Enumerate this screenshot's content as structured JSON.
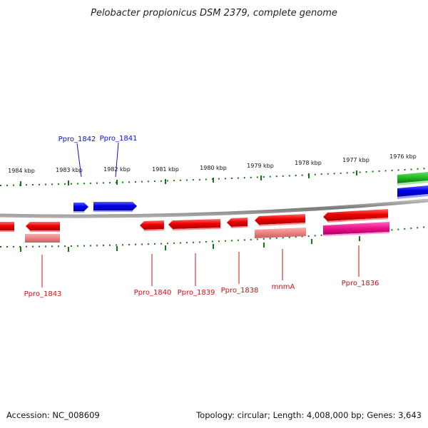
{
  "title": "Pelobacter propionicus DSM 2379, complete genome",
  "footer": {
    "accession": "Accession: NC_008609",
    "summary": "Topology: circular; Length: 4,008,000 bp; Genes: 3,643"
  },
  "scale_labels": [
    "1984 kbp",
    "1983 kbp",
    "1982 kbp",
    "1981 kbp",
    "1980 kbp",
    "1979 kbp",
    "1978 kbp",
    "1977 kbp",
    "1976 kbp"
  ],
  "gene_labels_forward": [
    "Ppro_1842",
    "Ppro_1841"
  ],
  "gene_labels_reverse": [
    "Ppro_1843",
    "Ppro_1840",
    "Ppro_1839",
    "Ppro_1838",
    "mnmA",
    "Ppro_1836"
  ],
  "colors": {
    "forward_gene": "#0000ee",
    "reverse_gene": "#ee0000",
    "rna_or_pseudo": "#ee1188",
    "other_gene": "#22bb22",
    "tick": "#117711",
    "backbone": "#888888"
  }
}
